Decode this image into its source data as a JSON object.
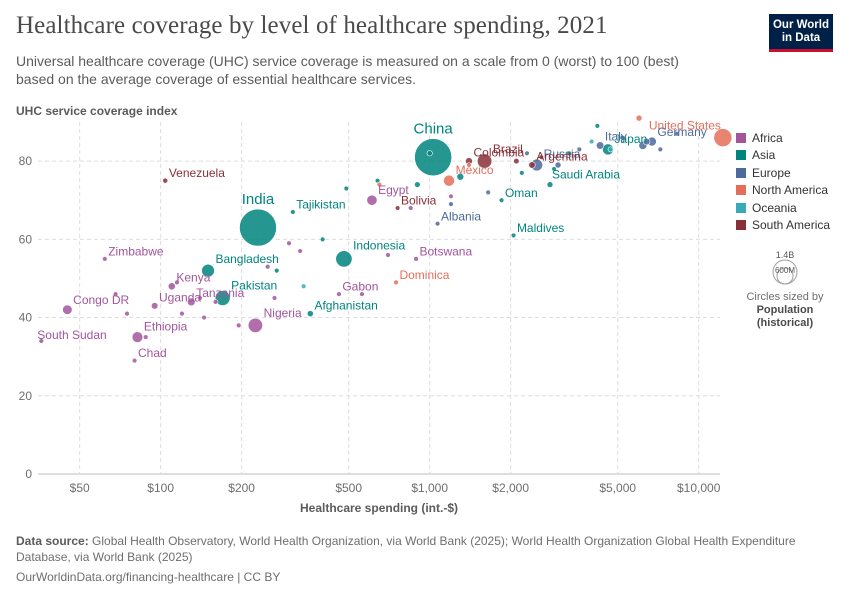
{
  "header": {
    "title": "Healthcare coverage by level of healthcare spending, 2021",
    "subtitle": "Universal healthcare coverage (UHC) service coverage is measured on a scale from 0 (worst) to 100 (best) based on the average coverage of essential healthcare services.",
    "logo_line1": "Our World",
    "logo_line2": "in Data"
  },
  "footer": {
    "source_label": "Data source:",
    "source_text": "Global Health Observatory, World Health Organization, via World Bank (2025); World Health Organization Global Health Expenditure Database, via World Bank (2025)",
    "link_text": "OurWorldinData.org/financing-healthcare | CC BY"
  },
  "size_legend": {
    "big": "1.4B",
    "small": "600M",
    "note": "Circles sized by",
    "note_bold_1": "Population",
    "note_bold_2": "(historical)"
  },
  "chart_data": {
    "type": "scatter",
    "ylabel": "UHC service coverage index",
    "xlabel": "Healthcare spending (int.-$)",
    "xscale": "log",
    "xlim": [
      35,
      12000
    ],
    "ylim": [
      0,
      90
    ],
    "xticks": [
      {
        "v": 50,
        "label": "$50"
      },
      {
        "v": 100,
        "label": "$100"
      },
      {
        "v": 200,
        "label": "$200"
      },
      {
        "v": 500,
        "label": "$500"
      },
      {
        "v": 1000,
        "label": "$1,000"
      },
      {
        "v": 2000,
        "label": "$2,000"
      },
      {
        "v": 5000,
        "label": "$5,000"
      },
      {
        "v": 10000,
        "label": "$10,000"
      }
    ],
    "yticks": [
      0,
      20,
      40,
      60,
      80
    ],
    "grid": true,
    "legend_position": "right",
    "colors": {
      "Africa": "#a2559c",
      "Asia": "#00847e",
      "Europe": "#4c6a9c",
      "North America": "#e56e5a",
      "Oceania": "#38aaba",
      "South America": "#883039"
    },
    "regions": [
      "Africa",
      "Asia",
      "Europe",
      "North America",
      "Oceania",
      "South America"
    ],
    "points": [
      {
        "label": "China",
        "region": "Asia",
        "x": 1030,
        "y": 81,
        "pop": 1412
      },
      {
        "label": "India",
        "region": "Asia",
        "x": 230,
        "y": 63,
        "pop": 1400
      },
      {
        "label": "United States",
        "region": "North America",
        "x": 12300,
        "y": 86,
        "pop": 334
      },
      {
        "label": "Indonesia",
        "region": "Asia",
        "x": 480,
        "y": 55,
        "pop": 274
      },
      {
        "label": "Pakistan",
        "region": "Asia",
        "x": 170,
        "y": 45,
        "pop": 231
      },
      {
        "label": "Nigeria",
        "region": "Africa",
        "x": 225,
        "y": 38,
        "pop": 213
      },
      {
        "label": "Brazil",
        "region": "South America",
        "x": 1600,
        "y": 80,
        "pop": 214
      },
      {
        "label": "Bangladesh",
        "region": "Asia",
        "x": 150,
        "y": 52,
        "pop": 169
      },
      {
        "label": "Russia",
        "region": "Europe",
        "x": 2500,
        "y": 79,
        "pop": 145
      },
      {
        "label": "Mexico",
        "region": "North America",
        "x": 1180,
        "y": 75,
        "pop": 127
      },
      {
        "label": "Ethiopia",
        "region": "Africa",
        "x": 82,
        "y": 35,
        "pop": 120
      },
      {
        "label": "Egypt",
        "region": "Africa",
        "x": 610,
        "y": 70,
        "pop": 109
      },
      {
        "label": "Japan",
        "region": "Asia",
        "x": 4600,
        "y": 83,
        "pop": 125
      },
      {
        "label": "Germany",
        "region": "Europe",
        "x": 6700,
        "y": 85,
        "pop": 83
      },
      {
        "label": "Tanzania",
        "region": "Africa",
        "x": 130,
        "y": 44,
        "pop": 63
      },
      {
        "label": "Italy",
        "region": "Europe",
        "x": 4300,
        "y": 84,
        "pop": 59
      },
      {
        "label": "Kenya",
        "region": "Africa",
        "x": 110,
        "y": 48,
        "pop": 53
      },
      {
        "label": "Colombia",
        "region": "South America",
        "x": 1400,
        "y": 80,
        "pop": 51
      },
      {
        "label": "Argentina",
        "region": "South America",
        "x": 2400,
        "y": 79,
        "pop": 45
      },
      {
        "label": "Congo DR",
        "region": "Africa",
        "x": 45,
        "y": 42,
        "pop": 95
      },
      {
        "label": "Uganda",
        "region": "Africa",
        "x": 95,
        "y": 43,
        "pop": 46
      },
      {
        "label": "Venezuela",
        "region": "South America",
        "x": 104,
        "y": 75,
        "pop": 28
      },
      {
        "label": "Tajikistan",
        "region": "Asia",
        "x": 310,
        "y": 67,
        "pop": 10
      },
      {
        "label": "Zimbabwe",
        "region": "Africa",
        "x": 62,
        "y": 55,
        "pop": 16
      },
      {
        "label": "Afghanistan",
        "region": "Asia",
        "x": 360,
        "y": 41,
        "pop": 40
      },
      {
        "label": "South Sudan",
        "region": "Africa",
        "x": 36,
        "y": 34,
        "pop": 11
      },
      {
        "label": "Chad",
        "region": "Africa",
        "x": 80,
        "y": 29,
        "pop": 17
      },
      {
        "label": "Bolivia",
        "region": "South America",
        "x": 760,
        "y": 68,
        "pop": 12
      },
      {
        "label": "Albania",
        "region": "Europe",
        "x": 1070,
        "y": 64,
        "pop": 3
      },
      {
        "label": "Oman",
        "region": "Asia",
        "x": 1850,
        "y": 70,
        "pop": 5
      },
      {
        "label": "Saudi Arabia",
        "region": "Asia",
        "x": 2800,
        "y": 74,
        "pop": 36
      },
      {
        "label": "Maldives",
        "region": "Asia",
        "x": 2050,
        "y": 61,
        "pop": 0.5
      },
      {
        "label": "Botswana",
        "region": "Africa",
        "x": 890,
        "y": 55,
        "pop": 2.6
      },
      {
        "label": "Gabon",
        "region": "Africa",
        "x": 460,
        "y": 46,
        "pop": 2.3
      },
      {
        "label": "Dominica",
        "region": "North America",
        "x": 750,
        "y": 49,
        "pop": 0.07
      },
      {
        "label": "",
        "region": "Africa",
        "x": 68,
        "y": 46,
        "pop": 5
      },
      {
        "label": "",
        "region": "Africa",
        "x": 75,
        "y": 41,
        "pop": 4
      },
      {
        "label": "",
        "region": "Africa",
        "x": 88,
        "y": 35,
        "pop": 6
      },
      {
        "label": "",
        "region": "Africa",
        "x": 120,
        "y": 41,
        "pop": 9
      },
      {
        "label": "",
        "region": "Africa",
        "x": 140,
        "y": 45,
        "pop": 7
      },
      {
        "label": "",
        "region": "Africa",
        "x": 160,
        "y": 44,
        "pop": 8
      },
      {
        "label": "",
        "region": "Africa",
        "x": 195,
        "y": 38,
        "pop": 14
      },
      {
        "label": "",
        "region": "Africa",
        "x": 250,
        "y": 53,
        "pop": 9
      },
      {
        "label": "",
        "region": "Africa",
        "x": 265,
        "y": 45,
        "pop": 5
      },
      {
        "label": "",
        "region": "Africa",
        "x": 300,
        "y": 59,
        "pop": 6
      },
      {
        "label": "",
        "region": "Africa",
        "x": 330,
        "y": 57,
        "pop": 4
      },
      {
        "label": "",
        "region": "Africa",
        "x": 560,
        "y": 46,
        "pop": 3
      },
      {
        "label": "",
        "region": "Africa",
        "x": 700,
        "y": 56,
        "pop": 2
      },
      {
        "label": "",
        "region": "Africa",
        "x": 850,
        "y": 68,
        "pop": 3
      },
      {
        "label": "",
        "region": "Africa",
        "x": 1200,
        "y": 71,
        "pop": 5
      },
      {
        "label": "",
        "region": "Africa",
        "x": 115,
        "y": 49,
        "pop": 19
      },
      {
        "label": "",
        "region": "Africa",
        "x": 145,
        "y": 40,
        "pop": 12
      },
      {
        "label": "",
        "region": "Asia",
        "x": 490,
        "y": 73,
        "pop": 6
      },
      {
        "label": "",
        "region": "Asia",
        "x": 640,
        "y": 75,
        "pop": 20
      },
      {
        "label": "",
        "region": "Asia",
        "x": 900,
        "y": 74,
        "pop": 35
      },
      {
        "label": "",
        "region": "Asia",
        "x": 1300,
        "y": 76,
        "pop": 50
      },
      {
        "label": "",
        "region": "Asia",
        "x": 2200,
        "y": 77,
        "pop": 15
      },
      {
        "label": "",
        "region": "Asia",
        "x": 2900,
        "y": 78,
        "pop": 9
      },
      {
        "label": "",
        "region": "Asia",
        "x": 3300,
        "y": 82,
        "pop": 4
      },
      {
        "label": "",
        "region": "Asia",
        "x": 4200,
        "y": 89,
        "pop": 9
      },
      {
        "label": "",
        "region": "Asia",
        "x": 400,
        "y": 60,
        "pop": 5
      },
      {
        "label": "",
        "region": "Asia",
        "x": 270,
        "y": 52,
        "pop": 7
      },
      {
        "label": "",
        "region": "Asia",
        "x": 1000,
        "y": 82,
        "pop": 30
      },
      {
        "label": "",
        "region": "Europe",
        "x": 1200,
        "y": 69,
        "pop": 3
      },
      {
        "label": "",
        "region": "Europe",
        "x": 1650,
        "y": 72,
        "pop": 2
      },
      {
        "label": "",
        "region": "Europe",
        "x": 2300,
        "y": 82,
        "pop": 10
      },
      {
        "label": "",
        "region": "Europe",
        "x": 3000,
        "y": 79,
        "pop": 38
      },
      {
        "label": "",
        "region": "Europe",
        "x": 3600,
        "y": 83,
        "pop": 10
      },
      {
        "label": "",
        "region": "Europe",
        "x": 5200,
        "y": 86,
        "pop": 10
      },
      {
        "label": "",
        "region": "Europe",
        "x": 6200,
        "y": 84,
        "pop": 67
      },
      {
        "label": "",
        "region": "Europe",
        "x": 7200,
        "y": 83,
        "pop": 8
      },
      {
        "label": "",
        "region": "Europe",
        "x": 8300,
        "y": 87,
        "pop": 5
      },
      {
        "label": "",
        "region": "Europe",
        "x": 6400,
        "y": 85,
        "pop": 47
      },
      {
        "label": "",
        "region": "North America",
        "x": 650,
        "y": 74,
        "pop": 2
      },
      {
        "label": "",
        "region": "North America",
        "x": 1400,
        "y": 79,
        "pop": 5
      },
      {
        "label": "",
        "region": "North America",
        "x": 6000,
        "y": 91,
        "pop": 38
      },
      {
        "label": "",
        "region": "Oceania",
        "x": 4700,
        "y": 83,
        "pop": 26
      },
      {
        "label": "",
        "region": "Oceania",
        "x": 4000,
        "y": 85,
        "pop": 5
      },
      {
        "label": "",
        "region": "Oceania",
        "x": 340,
        "y": 48,
        "pop": 1
      },
      {
        "label": "",
        "region": "South America",
        "x": 2100,
        "y": 80,
        "pop": 33
      },
      {
        "label": "",
        "region": "South America",
        "x": 2600,
        "y": 81,
        "pop": 19
      }
    ]
  }
}
